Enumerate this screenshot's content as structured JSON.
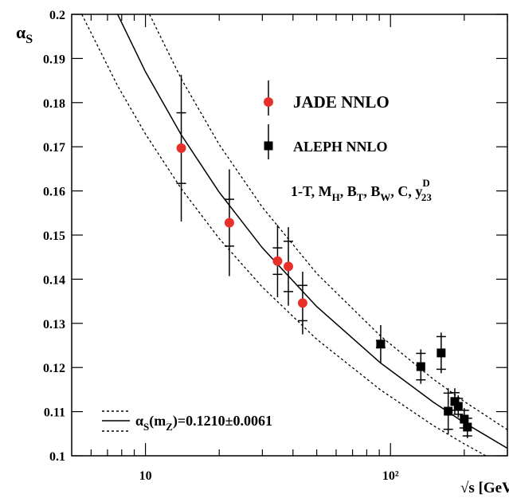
{
  "chart_data": {
    "type": "scatter",
    "x_label": "√s [GeV]",
    "y_label": [
      "α",
      "S"
    ],
    "xscale": "log",
    "xlim": [
      5,
      300
    ],
    "xticks": [
      10,
      {
        "value": 100,
        "label": "10²"
      }
    ],
    "xminorticks": [
      6,
      7,
      8,
      9,
      20,
      30,
      40,
      50,
      60,
      70,
      80,
      90,
      200,
      300
    ],
    "ylim": [
      0.1,
      0.2
    ],
    "yticks": [
      0.1,
      0.11,
      0.12,
      0.13,
      0.14,
      0.15,
      0.16,
      0.17,
      0.18,
      0.19,
      0.2
    ],
    "series": [
      {
        "name": "JADE NNLO",
        "color": "#e8302a",
        "marker": "circle",
        "x": [
          14,
          22,
          34.6,
          38.3,
          43.8
        ],
        "values": [
          0.1697,
          0.1528,
          0.1441,
          0.1429,
          0.1346
        ],
        "errors": [
          0.0166,
          0.0121,
          0.0082,
          0.0089,
          0.0071
        ],
        "stat_errors": [
          0.008,
          0.0053,
          0.003,
          0.0057,
          0.004
        ]
      },
      {
        "name": "ALEPH NNLO",
        "color": "#000000",
        "marker": "square",
        "x": [
          91.2,
          133,
          161,
          172,
          183,
          189,
          200,
          206
        ],
        "values": [
          0.1253,
          0.1202,
          0.1233,
          0.1101,
          0.1123,
          0.1112,
          0.1083,
          0.1065
        ],
        "errors": [
          0.0043,
          0.0039,
          0.0046,
          0.0052,
          0.003,
          0.0025,
          0.0025,
          0.0025
        ],
        "stat_errors": [
          0.0008,
          0.003,
          0.0037,
          0.0041,
          0.002,
          0.0018,
          0.002,
          0.002
        ]
      }
    ],
    "curves": [
      {
        "dash": false,
        "x": [
          7.7,
          10,
          14,
          20,
          30,
          50,
          91.2,
          150,
          200,
          300
        ],
        "values": [
          0.2,
          0.187,
          0.1727,
          0.1597,
          0.1471,
          0.1338,
          0.121,
          0.1121,
          0.1075,
          0.1017
        ]
      },
      {
        "dash": true,
        "x": [
          10.39,
          14,
          20,
          30,
          50,
          91.2,
          150,
          200,
          300
        ],
        "values": [
          0.2,
          0.1854,
          0.1705,
          0.1563,
          0.1413,
          0.1271,
          0.1173,
          0.1123,
          0.1059
        ]
      },
      {
        "dash": true,
        "x": [
          5.5,
          7.7,
          10,
          14,
          20,
          30,
          50,
          91.2,
          150,
          200,
          300
        ],
        "values": [
          0.2,
          0.1838,
          0.1729,
          0.1605,
          0.1492,
          0.1382,
          0.1264,
          0.1149,
          0.1068,
          0.1027,
          0.0973
        ]
      }
    ],
    "annotation": [
      {
        "t": "1-T, M"
      },
      {
        "t": "H",
        "pos": "sub"
      },
      {
        "t": ", B"
      },
      {
        "t": "T",
        "pos": "sub"
      },
      {
        "t": ", B"
      },
      {
        "t": "W",
        "pos": "sub"
      },
      {
        "t": ", C, y"
      },
      {
        "t": "D",
        "pos": "sup"
      },
      {
        "t": "23",
        "pos": "sub"
      }
    ],
    "curve_legend": [
      {
        "t": "α"
      },
      {
        "t": "S",
        "pos": "sub"
      },
      {
        "t": "(m"
      },
      {
        "t": "Z",
        "pos": "sub"
      },
      {
        "t": ")=0.1210±0.0061"
      }
    ]
  }
}
